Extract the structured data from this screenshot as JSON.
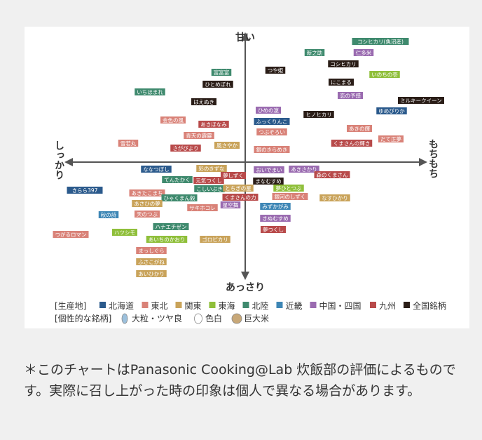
{
  "chart": {
    "axes": {
      "top": "甘い",
      "bottom": "あっさり",
      "left": "しっかり",
      "right": "もちもち"
    },
    "legend": {
      "origin_title": "[生産地]",
      "regions": [
        {
          "name": "北海道",
          "color": "#2b5a8c"
        },
        {
          "name": "東北",
          "color": "#d98278"
        },
        {
          "name": "関東",
          "color": "#c9a35a"
        },
        {
          "name": "東海",
          "color": "#8fbf3a"
        },
        {
          "name": "北陸",
          "color": "#3f8a6e"
        },
        {
          "name": "近畿",
          "color": "#3d86b5"
        },
        {
          "name": "中国・四国",
          "color": "#9a6bb0"
        },
        {
          "name": "九州",
          "color": "#b84a4a"
        },
        {
          "name": "全国銘柄",
          "color": "#2a1d17"
        }
      ],
      "special_title": "[個性的な銘柄]",
      "specials": [
        {
          "name": "大粒・ツヤ良",
          "color": "#9cc0dc"
        },
        {
          "name": "色白",
          "color": "#ffffff"
        },
        {
          "name": "巨大米",
          "color": "#c8a878"
        }
      ]
    },
    "nodes": [
      {
        "label": "コシヒカリ(魚沼産)",
        "region": 4
      },
      {
        "label": "新之助",
        "region": 4
      },
      {
        "label": "仁多米",
        "region": 6
      },
      {
        "label": "つや姫",
        "region": 8
      },
      {
        "label": "コシヒカリ",
        "region": 8
      },
      {
        "label": "いのちの壱",
        "region": 3
      },
      {
        "label": "富富富",
        "region": 4
      },
      {
        "label": "ひとめぼれ",
        "region": 8
      },
      {
        "label": "にこまる",
        "region": 8
      },
      {
        "label": "いちほまれ",
        "region": 4
      },
      {
        "label": "はえぬき",
        "region": 8
      },
      {
        "label": "恋の予感",
        "region": 6
      },
      {
        "label": "ミルキークイーン",
        "region": 8
      },
      {
        "label": "ゆめぴりか",
        "region": 0
      },
      {
        "label": "ひめの凜",
        "region": 6
      },
      {
        "label": "ヒノヒカリ",
        "region": 8
      },
      {
        "label": "金色の風",
        "region": 1
      },
      {
        "label": "あきほなみ",
        "region": 7
      },
      {
        "label": "ふっくりんこ",
        "region": 0
      },
      {
        "label": "あきの輝",
        "region": 1
      },
      {
        "label": "つぶぞろい",
        "region": 1
      },
      {
        "label": "青天の霹靂",
        "region": 1
      },
      {
        "label": "雪若丸",
        "region": 1
      },
      {
        "label": "風さやか",
        "region": 2
      },
      {
        "label": "さがびより",
        "region": 7
      },
      {
        "label": "くまさんの輝き",
        "region": 7
      },
      {
        "label": "だて正夢",
        "region": 1
      },
      {
        "label": "銀のきらめき",
        "region": 1
      },
      {
        "label": "ななつぼし",
        "region": 0
      },
      {
        "label": "彩のきずな",
        "region": 2
      },
      {
        "label": "おいでまい",
        "region": 6
      },
      {
        "label": "あきさかり",
        "region": 6
      },
      {
        "label": "森のくまさん",
        "region": 7
      },
      {
        "label": "てんたかく",
        "region": 4
      },
      {
        "label": "元気つくし",
        "region": 7
      },
      {
        "label": "夢しずく",
        "region": 7
      },
      {
        "label": "まなむすめ",
        "region": 8
      },
      {
        "label": "こしいぶき",
        "region": 4
      },
      {
        "label": "とちぎの星",
        "region": 2
      },
      {
        "label": "夢ひとつぶ",
        "region": 3
      },
      {
        "label": "きらら397",
        "region": 0
      },
      {
        "label": "あきたこまち",
        "region": 1
      },
      {
        "label": "ひゃくまん穀",
        "region": 4
      },
      {
        "label": "くまさんの力",
        "region": 7
      },
      {
        "label": "銀河のしずく",
        "region": 1
      },
      {
        "label": "なすひかり",
        "region": 2
      },
      {
        "label": "あさひの夢",
        "region": 2
      },
      {
        "label": "サキホコレ",
        "region": 1
      },
      {
        "label": "天のつぶ",
        "region": 1
      },
      {
        "label": "星空舞",
        "region": 6
      },
      {
        "label": "みずかがみ",
        "region": 5
      },
      {
        "label": "秋の詩",
        "region": 5
      },
      {
        "label": "きぬむすめ",
        "region": 6
      },
      {
        "label": "ハナエチゼン",
        "region": 4
      },
      {
        "label": "夢つくし",
        "region": 7
      },
      {
        "label": "ハツシモ",
        "region": 3
      },
      {
        "label": "つがるロマン",
        "region": 1
      },
      {
        "label": "あいちのかおり",
        "region": 3
      },
      {
        "label": "ゴロピカリ",
        "region": 2
      },
      {
        "label": "まっしぐら",
        "region": 1
      },
      {
        "label": "ふさこがね",
        "region": 2
      },
      {
        "label": "あいひかり",
        "region": 2
      }
    ]
  },
  "note": "＊このチャートはPanasonic Cooking@Lab 炊飯部の評価によるものです。実際に召し上がった時の印象は個人で異なる場合があります。"
}
